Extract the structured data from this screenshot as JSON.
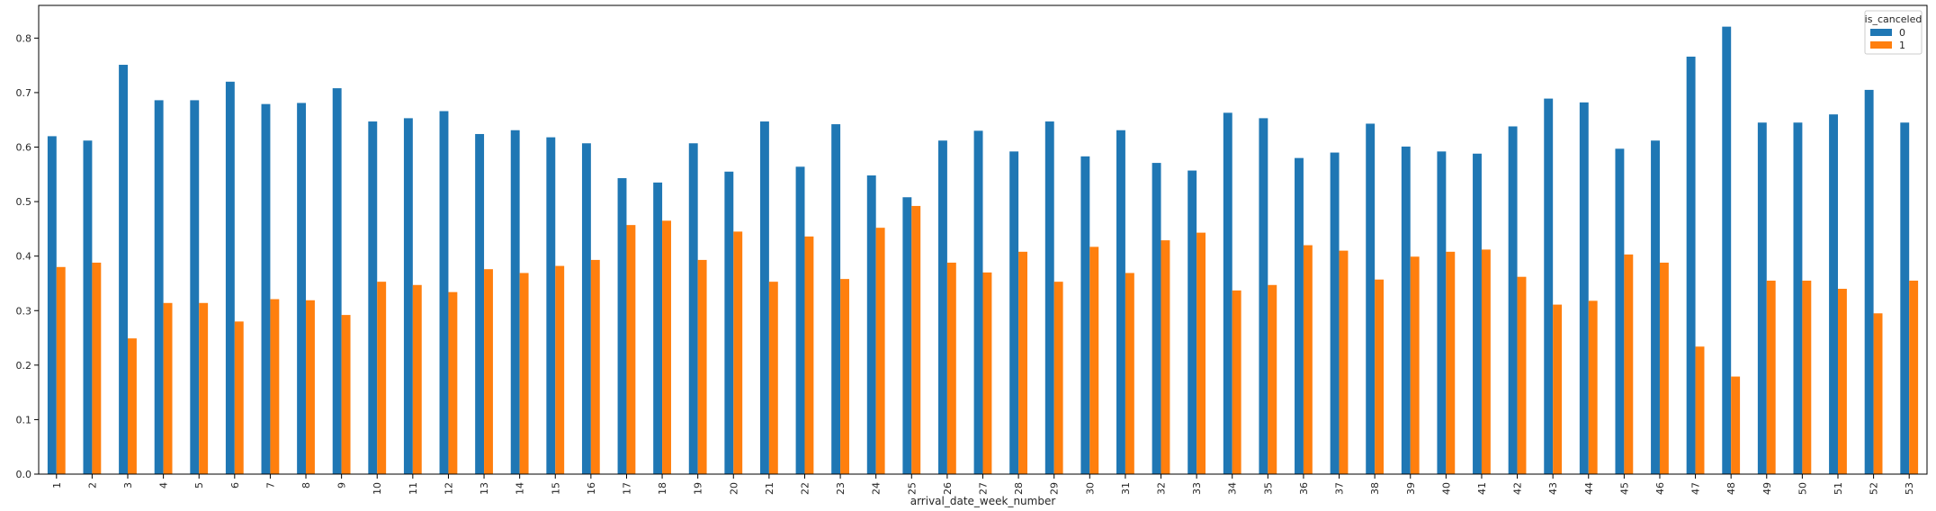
{
  "chart_data": {
    "type": "bar",
    "xlabel": "arrival_date_week_number",
    "ylabel": "",
    "ylim": [
      0,
      0.86
    ],
    "yticks": [
      "0.0",
      "0.1",
      "0.2",
      "0.3",
      "0.4",
      "0.5",
      "0.6",
      "0.7",
      "0.8"
    ],
    "categories": [
      "1",
      "2",
      "3",
      "4",
      "5",
      "6",
      "7",
      "8",
      "9",
      "10",
      "11",
      "12",
      "13",
      "14",
      "15",
      "16",
      "17",
      "18",
      "19",
      "20",
      "21",
      "22",
      "23",
      "24",
      "25",
      "26",
      "27",
      "28",
      "29",
      "30",
      "31",
      "32",
      "33",
      "34",
      "35",
      "36",
      "37",
      "38",
      "39",
      "40",
      "41",
      "42",
      "43",
      "44",
      "45",
      "46",
      "47",
      "48",
      "49",
      "50",
      "51",
      "52",
      "53"
    ],
    "legend": {
      "title": "is_canceled",
      "placement": "top-right"
    },
    "series": [
      {
        "name": "0",
        "color": "#1f77b4",
        "values": [
          0.62,
          0.612,
          0.751,
          0.686,
          0.686,
          0.72,
          0.679,
          0.681,
          0.708,
          0.647,
          0.653,
          0.666,
          0.624,
          0.631,
          0.618,
          0.607,
          0.543,
          0.535,
          0.607,
          0.555,
          0.647,
          0.564,
          0.642,
          0.548,
          0.508,
          0.612,
          0.63,
          0.592,
          0.647,
          0.583,
          0.631,
          0.571,
          0.557,
          0.663,
          0.653,
          0.58,
          0.59,
          0.643,
          0.601,
          0.592,
          0.588,
          0.638,
          0.689,
          0.682,
          0.597,
          0.612,
          0.766,
          0.821,
          0.645,
          0.645,
          0.66,
          0.705,
          0.645
        ]
      },
      {
        "name": "1",
        "color": "#ff7f0e",
        "values": [
          0.38,
          0.388,
          0.249,
          0.314,
          0.314,
          0.28,
          0.321,
          0.319,
          0.292,
          0.353,
          0.347,
          0.334,
          0.376,
          0.369,
          0.382,
          0.393,
          0.457,
          0.465,
          0.393,
          0.445,
          0.353,
          0.436,
          0.358,
          0.452,
          0.492,
          0.388,
          0.37,
          0.408,
          0.353,
          0.417,
          0.369,
          0.429,
          0.443,
          0.337,
          0.347,
          0.42,
          0.41,
          0.357,
          0.399,
          0.408,
          0.412,
          0.362,
          0.311,
          0.318,
          0.403,
          0.388,
          0.234,
          0.179,
          0.355,
          0.355,
          0.34,
          0.295,
          0.355
        ]
      }
    ]
  }
}
